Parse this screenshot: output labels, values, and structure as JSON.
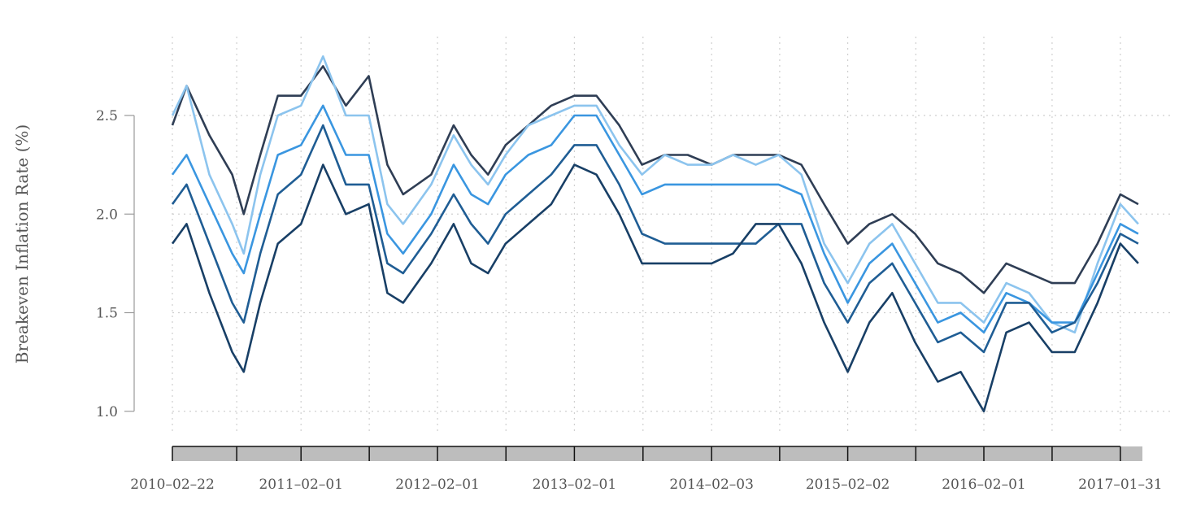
{
  "chart_data": {
    "type": "line",
    "ylabel": "Breakeven Inflation Rate (%)",
    "xlabel": "",
    "ylim": [
      0.9,
      2.9
    ],
    "xlim": [
      "2010-02-22",
      "2017-03-31"
    ],
    "y_ticks": [
      1.0,
      1.5,
      2.0,
      2.5
    ],
    "y_tick_labels": [
      "1.0",
      "1.5",
      "2.0",
      "2.5"
    ],
    "x_tick_labels": [
      "2010–02–22",
      "2011–02–01",
      "2012–02–01",
      "2013–02–01",
      "2014–02–03",
      "2015–02–02",
      "2016–02–01",
      "2017–01–31"
    ],
    "x_ticks": [
      "2010-02-22",
      "2011-02-01",
      "2012-02-01",
      "2013-02-01",
      "2014-02-03",
      "2015-02-02",
      "2016-02-01",
      "2017-01-31"
    ],
    "grid": true,
    "legend": "none",
    "colors": [
      "#2f3e55",
      "#8cc4ee",
      "#3a96e0",
      "#1f5d94",
      "#183f66"
    ],
    "series": [
      {
        "x": [
          "2010-02-22",
          "2010-04-01",
          "2010-06-01",
          "2010-08-01",
          "2010-09-01",
          "2010-10-15",
          "2010-12-01",
          "2011-02-01",
          "2011-04-01",
          "2011-06-01",
          "2011-08-01",
          "2011-09-20",
          "2011-11-01",
          "2012-01-15",
          "2012-03-15",
          "2012-05-01",
          "2012-06-15",
          "2012-08-01",
          "2012-10-01",
          "2012-12-01",
          "2013-02-01",
          "2013-04-01",
          "2013-06-01",
          "2013-08-01",
          "2013-10-01",
          "2013-12-01",
          "2014-02-03",
          "2014-04-01",
          "2014-06-01",
          "2014-08-01",
          "2014-10-01",
          "2014-12-01",
          "2015-02-02",
          "2015-04-01",
          "2015-06-01",
          "2015-08-01",
          "2015-10-01",
          "2015-12-01",
          "2016-02-01",
          "2016-04-01",
          "2016-06-01",
          "2016-08-01",
          "2016-10-01",
          "2016-12-01",
          "2017-01-31",
          "2017-03-20"
        ],
        "values": [
          2.45,
          2.65,
          2.4,
          2.2,
          2.0,
          2.3,
          2.6,
          2.6,
          2.75,
          2.55,
          2.7,
          2.25,
          2.1,
          2.2,
          2.45,
          2.3,
          2.2,
          2.35,
          2.45,
          2.55,
          2.6,
          2.6,
          2.45,
          2.25,
          2.3,
          2.3,
          2.25,
          2.3,
          2.3,
          2.3,
          2.25,
          2.05,
          1.85,
          1.95,
          2.0,
          1.9,
          1.75,
          1.7,
          1.6,
          1.75,
          1.7,
          1.65,
          1.65,
          1.85,
          2.1,
          2.05
        ]
      },
      {
        "x": [
          "2010-02-22",
          "2010-04-01",
          "2010-06-01",
          "2010-08-01",
          "2010-09-01",
          "2010-10-15",
          "2010-12-01",
          "2011-02-01",
          "2011-04-01",
          "2011-06-01",
          "2011-08-01",
          "2011-09-20",
          "2011-11-01",
          "2012-01-15",
          "2012-03-15",
          "2012-05-01",
          "2012-06-15",
          "2012-08-01",
          "2012-10-01",
          "2012-12-01",
          "2013-02-01",
          "2013-04-01",
          "2013-06-01",
          "2013-08-01",
          "2013-10-01",
          "2013-12-01",
          "2014-02-03",
          "2014-04-01",
          "2014-06-01",
          "2014-08-01",
          "2014-10-01",
          "2014-12-01",
          "2015-02-02",
          "2015-04-01",
          "2015-06-01",
          "2015-08-01",
          "2015-10-01",
          "2015-12-01",
          "2016-02-01",
          "2016-04-01",
          "2016-06-01",
          "2016-08-01",
          "2016-10-01",
          "2016-12-01",
          "2017-01-31",
          "2017-03-20"
        ],
        "values": [
          2.5,
          2.65,
          2.2,
          1.95,
          1.8,
          2.2,
          2.5,
          2.55,
          2.8,
          2.5,
          2.5,
          2.05,
          1.95,
          2.15,
          2.4,
          2.25,
          2.15,
          2.3,
          2.45,
          2.5,
          2.55,
          2.55,
          2.35,
          2.2,
          2.3,
          2.25,
          2.25,
          2.3,
          2.25,
          2.3,
          2.2,
          1.85,
          1.65,
          1.85,
          1.95,
          1.75,
          1.55,
          1.55,
          1.45,
          1.65,
          1.6,
          1.45,
          1.4,
          1.75,
          2.05,
          1.95
        ]
      },
      {
        "x": [
          "2010-02-22",
          "2010-04-01",
          "2010-06-01",
          "2010-08-01",
          "2010-09-01",
          "2010-10-15",
          "2010-12-01",
          "2011-02-01",
          "2011-04-01",
          "2011-06-01",
          "2011-08-01",
          "2011-09-20",
          "2011-11-01",
          "2012-01-15",
          "2012-03-15",
          "2012-05-01",
          "2012-06-15",
          "2012-08-01",
          "2012-10-01",
          "2012-12-01",
          "2013-02-01",
          "2013-04-01",
          "2013-06-01",
          "2013-08-01",
          "2013-10-01",
          "2013-12-01",
          "2014-02-03",
          "2014-04-01",
          "2014-06-01",
          "2014-08-01",
          "2014-10-01",
          "2014-12-01",
          "2015-02-02",
          "2015-04-01",
          "2015-06-01",
          "2015-08-01",
          "2015-10-01",
          "2015-12-01",
          "2016-02-01",
          "2016-04-01",
          "2016-06-01",
          "2016-08-01",
          "2016-10-01",
          "2016-12-01",
          "2017-01-31",
          "2017-03-20"
        ],
        "values": [
          2.2,
          2.3,
          2.05,
          1.8,
          1.7,
          2.0,
          2.3,
          2.35,
          2.55,
          2.3,
          2.3,
          1.9,
          1.8,
          2.0,
          2.25,
          2.1,
          2.05,
          2.2,
          2.3,
          2.35,
          2.5,
          2.5,
          2.3,
          2.1,
          2.15,
          2.15,
          2.15,
          2.15,
          2.15,
          2.15,
          2.1,
          1.8,
          1.55,
          1.75,
          1.85,
          1.65,
          1.45,
          1.5,
          1.4,
          1.6,
          1.55,
          1.45,
          1.45,
          1.7,
          1.95,
          1.9
        ]
      },
      {
        "x": [
          "2010-02-22",
          "2010-04-01",
          "2010-06-01",
          "2010-08-01",
          "2010-09-01",
          "2010-10-15",
          "2010-12-01",
          "2011-02-01",
          "2011-04-01",
          "2011-06-01",
          "2011-08-01",
          "2011-09-20",
          "2011-11-01",
          "2012-01-15",
          "2012-03-15",
          "2012-05-01",
          "2012-06-15",
          "2012-08-01",
          "2012-10-01",
          "2012-12-01",
          "2013-02-01",
          "2013-04-01",
          "2013-06-01",
          "2013-08-01",
          "2013-10-01",
          "2013-12-01",
          "2014-02-03",
          "2014-04-01",
          "2014-06-01",
          "2014-08-01",
          "2014-10-01",
          "2014-12-01",
          "2015-02-02",
          "2015-04-01",
          "2015-06-01",
          "2015-08-01",
          "2015-10-01",
          "2015-12-01",
          "2016-02-01",
          "2016-04-01",
          "2016-06-01",
          "2016-08-01",
          "2016-10-01",
          "2016-12-01",
          "2017-01-31",
          "2017-03-20"
        ],
        "values": [
          2.05,
          2.15,
          1.85,
          1.55,
          1.45,
          1.8,
          2.1,
          2.2,
          2.45,
          2.15,
          2.15,
          1.75,
          1.7,
          1.9,
          2.1,
          1.95,
          1.85,
          2.0,
          2.1,
          2.2,
          2.35,
          2.35,
          2.15,
          1.9,
          1.85,
          1.85,
          1.85,
          1.85,
          1.85,
          1.95,
          1.95,
          1.65,
          1.45,
          1.65,
          1.75,
          1.55,
          1.35,
          1.4,
          1.3,
          1.55,
          1.55,
          1.4,
          1.45,
          1.65,
          1.9,
          1.85
        ]
      },
      {
        "x": [
          "2010-02-22",
          "2010-04-01",
          "2010-06-01",
          "2010-08-01",
          "2010-09-01",
          "2010-10-15",
          "2010-12-01",
          "2011-02-01",
          "2011-04-01",
          "2011-06-01",
          "2011-08-01",
          "2011-09-20",
          "2011-11-01",
          "2012-01-15",
          "2012-03-15",
          "2012-05-01",
          "2012-06-15",
          "2012-08-01",
          "2012-10-01",
          "2012-12-01",
          "2013-02-01",
          "2013-04-01",
          "2013-06-01",
          "2013-08-01",
          "2013-10-01",
          "2013-12-01",
          "2014-02-03",
          "2014-04-01",
          "2014-06-01",
          "2014-08-01",
          "2014-10-01",
          "2014-12-01",
          "2015-02-02",
          "2015-04-01",
          "2015-06-01",
          "2015-08-01",
          "2015-10-01",
          "2015-12-01",
          "2016-02-01",
          "2016-04-01",
          "2016-06-01",
          "2016-08-01",
          "2016-10-01",
          "2016-12-01",
          "2017-01-31",
          "2017-03-20"
        ],
        "values": [
          1.85,
          1.95,
          1.6,
          1.3,
          1.2,
          1.55,
          1.85,
          1.95,
          2.25,
          2.0,
          2.05,
          1.6,
          1.55,
          1.75,
          1.95,
          1.75,
          1.7,
          1.85,
          1.95,
          2.05,
          2.25,
          2.2,
          2.0,
          1.75,
          1.75,
          1.75,
          1.75,
          1.8,
          1.95,
          1.95,
          1.75,
          1.45,
          1.2,
          1.45,
          1.6,
          1.35,
          1.15,
          1.2,
          1.0,
          1.4,
          1.45,
          1.3,
          1.3,
          1.55,
          1.85,
          1.75
        ]
      }
    ]
  }
}
